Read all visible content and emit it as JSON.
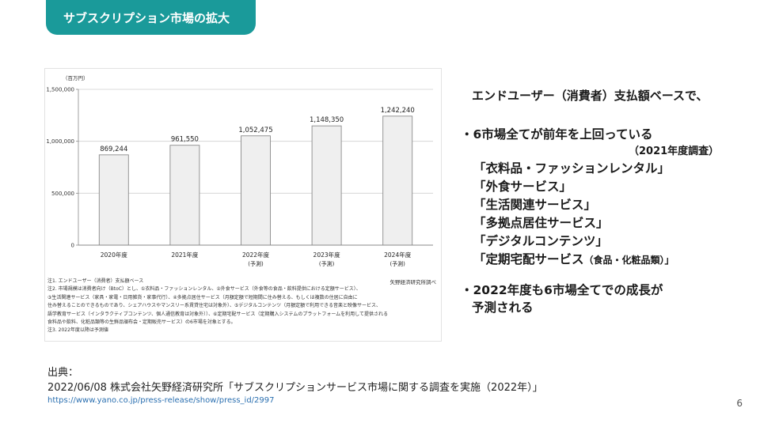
{
  "header": {
    "title": "サブスクリプション市場の拡大"
  },
  "chart_data": {
    "type": "bar",
    "unit_label": "（百万円）",
    "categories": [
      "2020年度",
      "2021年度",
      "2022年度",
      "2023年度",
      "2024年度"
    ],
    "category_sublabels": [
      "",
      "",
      "(予測)",
      "(予測)",
      "(予測)"
    ],
    "values": [
      869244,
      961550,
      1052475,
      1148350,
      1242240
    ],
    "value_labels": [
      "869,244",
      "961,550",
      "1,052,475",
      "1,148,350",
      "1,242,240"
    ],
    "ylim": [
      0,
      1500000
    ],
    "yticks": [
      0,
      500000,
      1000000,
      1500000
    ],
    "ytick_labels": [
      "0",
      "500,000",
      "1,000,000",
      "1,500,000"
    ],
    "grid": true,
    "bar_color": "#efefef",
    "bar_stroke": "#8a8a8a",
    "notes": [
      "注1. エンドユーザー（消費者）支払額ベース",
      "注2. 市場規模は消費者向け（BtoC）とし、①衣料品・ファッションレンタル、②外食サービス（外食等の食品・飲料提供における定額サービス）、",
      "③生活関連サービス（家具・家電・日用雑貨・家事代行）、④多拠点居住サービス（月額定額で短期間に住み替える、もしくは複数の住居に自由に",
      "住み替えることのできるものであり、シェアハウスやマンスリー系賃貸住宅は対象外）、⑤デジタルコンテンツ（月額定額で利用できる音楽と映像サービス、",
      "語学教育サービス（インタラクティブコンテンツ、個人通信教育は対象外））、⑥定期宅配サービス（定期購入システムのプラットフォームを利用して提供される",
      "食料品や飲料、化粧品類等の生鮮品頒布会・定期販売サービス）の6市場を対象とする。",
      "注3. 2022年度以降は予測値"
    ],
    "source": "矢野経済研究所調べ"
  },
  "right_panel": {
    "lead": "エンドユーザー（消費者）支払額ベースで、",
    "point1": "・6市場全てが前年を上回っている",
    "survey_note": "（2021年度調査）",
    "markets": [
      {
        "label": "「衣料品・ファッションレンタル」",
        "sub": ""
      },
      {
        "label": "「外食サービス」",
        "sub": ""
      },
      {
        "label": "「生活関連サービス」",
        "sub": ""
      },
      {
        "label": "「多拠点居住サービス」",
        "sub": ""
      },
      {
        "label": "「デジタルコンテンツ」",
        "sub": ""
      },
      {
        "label": "「定期宅配サービス",
        "sub": "（食品・化粧品類）」"
      }
    ],
    "point2_line1": "・2022年度も6市場全てでの成長が",
    "point2_line2": "予測される"
  },
  "citation": {
    "label": "出典：",
    "text": "2022/06/08 株式会社矢野経済研究所「サブスクリプションサービス市場に関する調査を実施（2022年）」",
    "url": "https://www.yano.co.jp/press-release/show/press_id/2997"
  },
  "page_number": "6"
}
